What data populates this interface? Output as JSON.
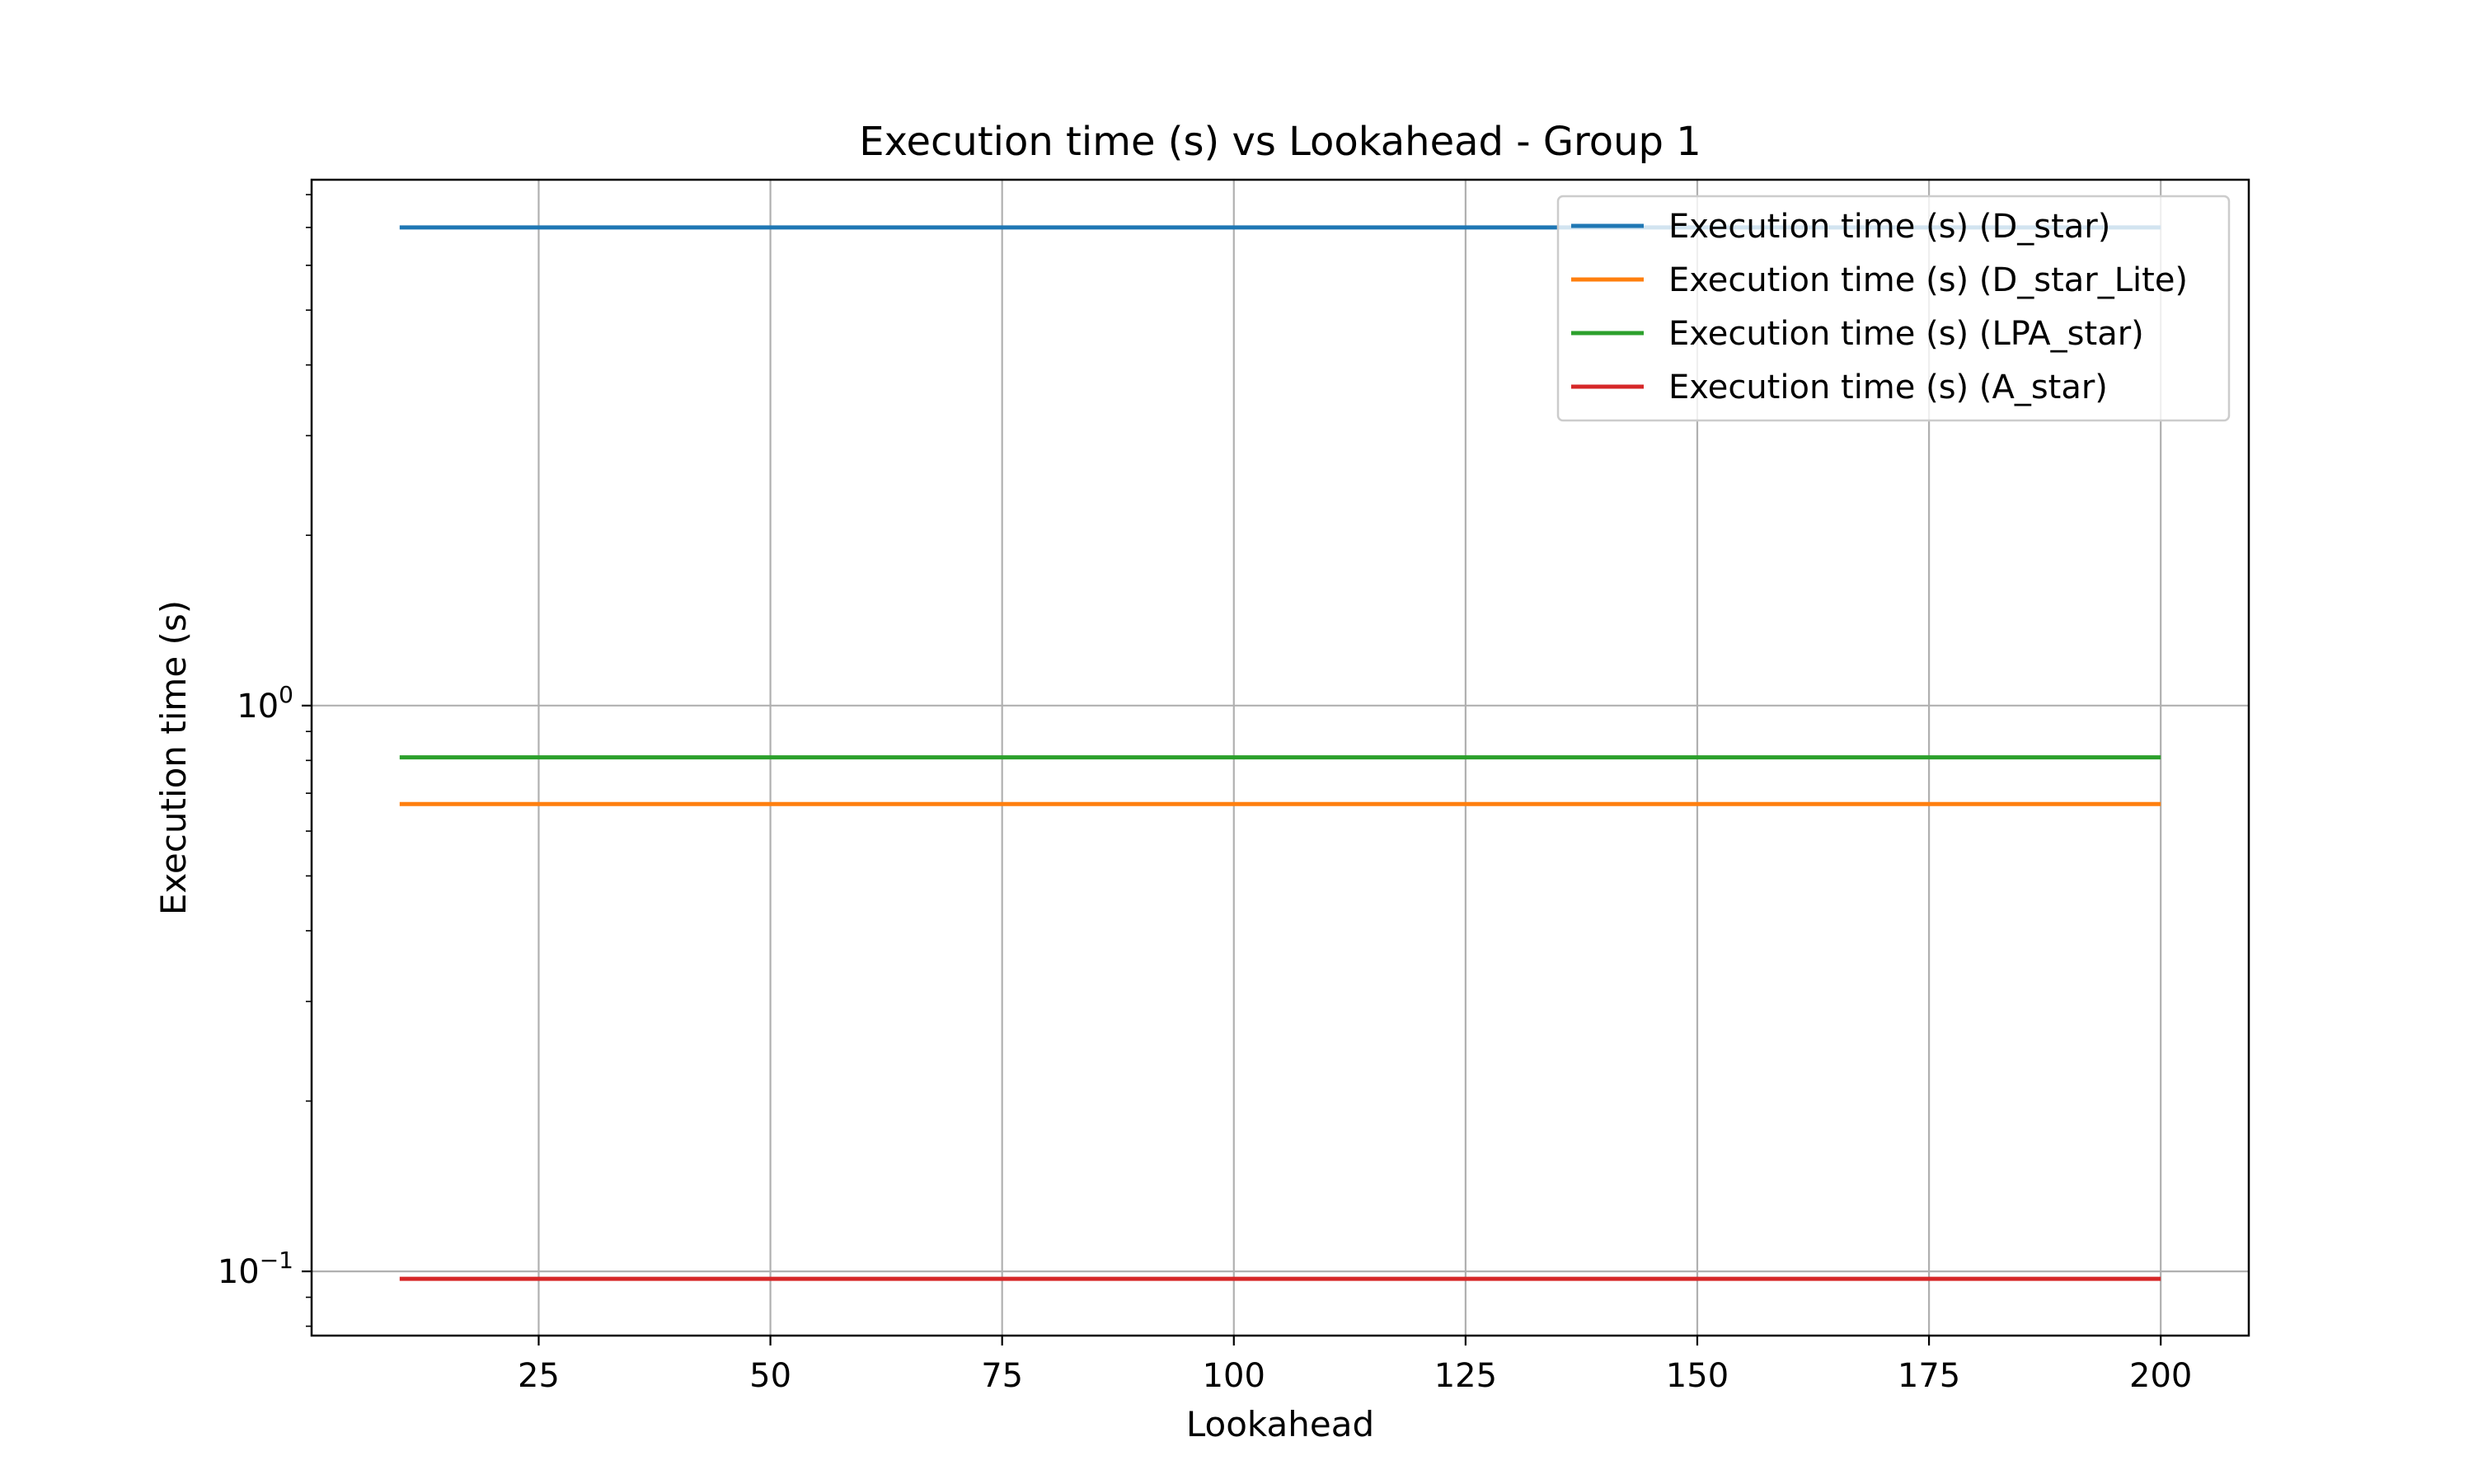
{
  "chart_data": {
    "type": "line",
    "title": "Execution time (s) vs Lookahead - Group 1",
    "xlabel": "Lookahead",
    "ylabel": "Execution time (s)",
    "x": [
      10,
      200
    ],
    "xticks": [
      25,
      50,
      75,
      100,
      125,
      150,
      175,
      200
    ],
    "xticklabels": [
      "25",
      "50",
      "75",
      "100",
      "125",
      "150",
      "175",
      "200"
    ],
    "xlim": [
      0.5,
      209.5
    ],
    "yscale": "log",
    "ylim": [
      0.077,
      8.5
    ],
    "yticks": [
      {
        "value": 0.1,
        "base": "10",
        "exp": "−1"
      },
      {
        "value": 1,
        "base": "10",
        "exp": "0"
      }
    ],
    "grid": true,
    "legend_position": "top-right",
    "series": [
      {
        "name": "Execution time (s) (D_star)",
        "color": "#1f77b4",
        "values": [
          7.0,
          7.0
        ]
      },
      {
        "name": "Execution time (s) (D_star_Lite)",
        "color": "#ff7f0e",
        "values": [
          0.67,
          0.67
        ]
      },
      {
        "name": "Execution time (s) (LPA_star)",
        "color": "#2ca02c",
        "values": [
          0.81,
          0.81
        ]
      },
      {
        "name": "Execution time (s) (A_star)",
        "color": "#d62728",
        "values": [
          0.097,
          0.097
        ]
      }
    ]
  }
}
